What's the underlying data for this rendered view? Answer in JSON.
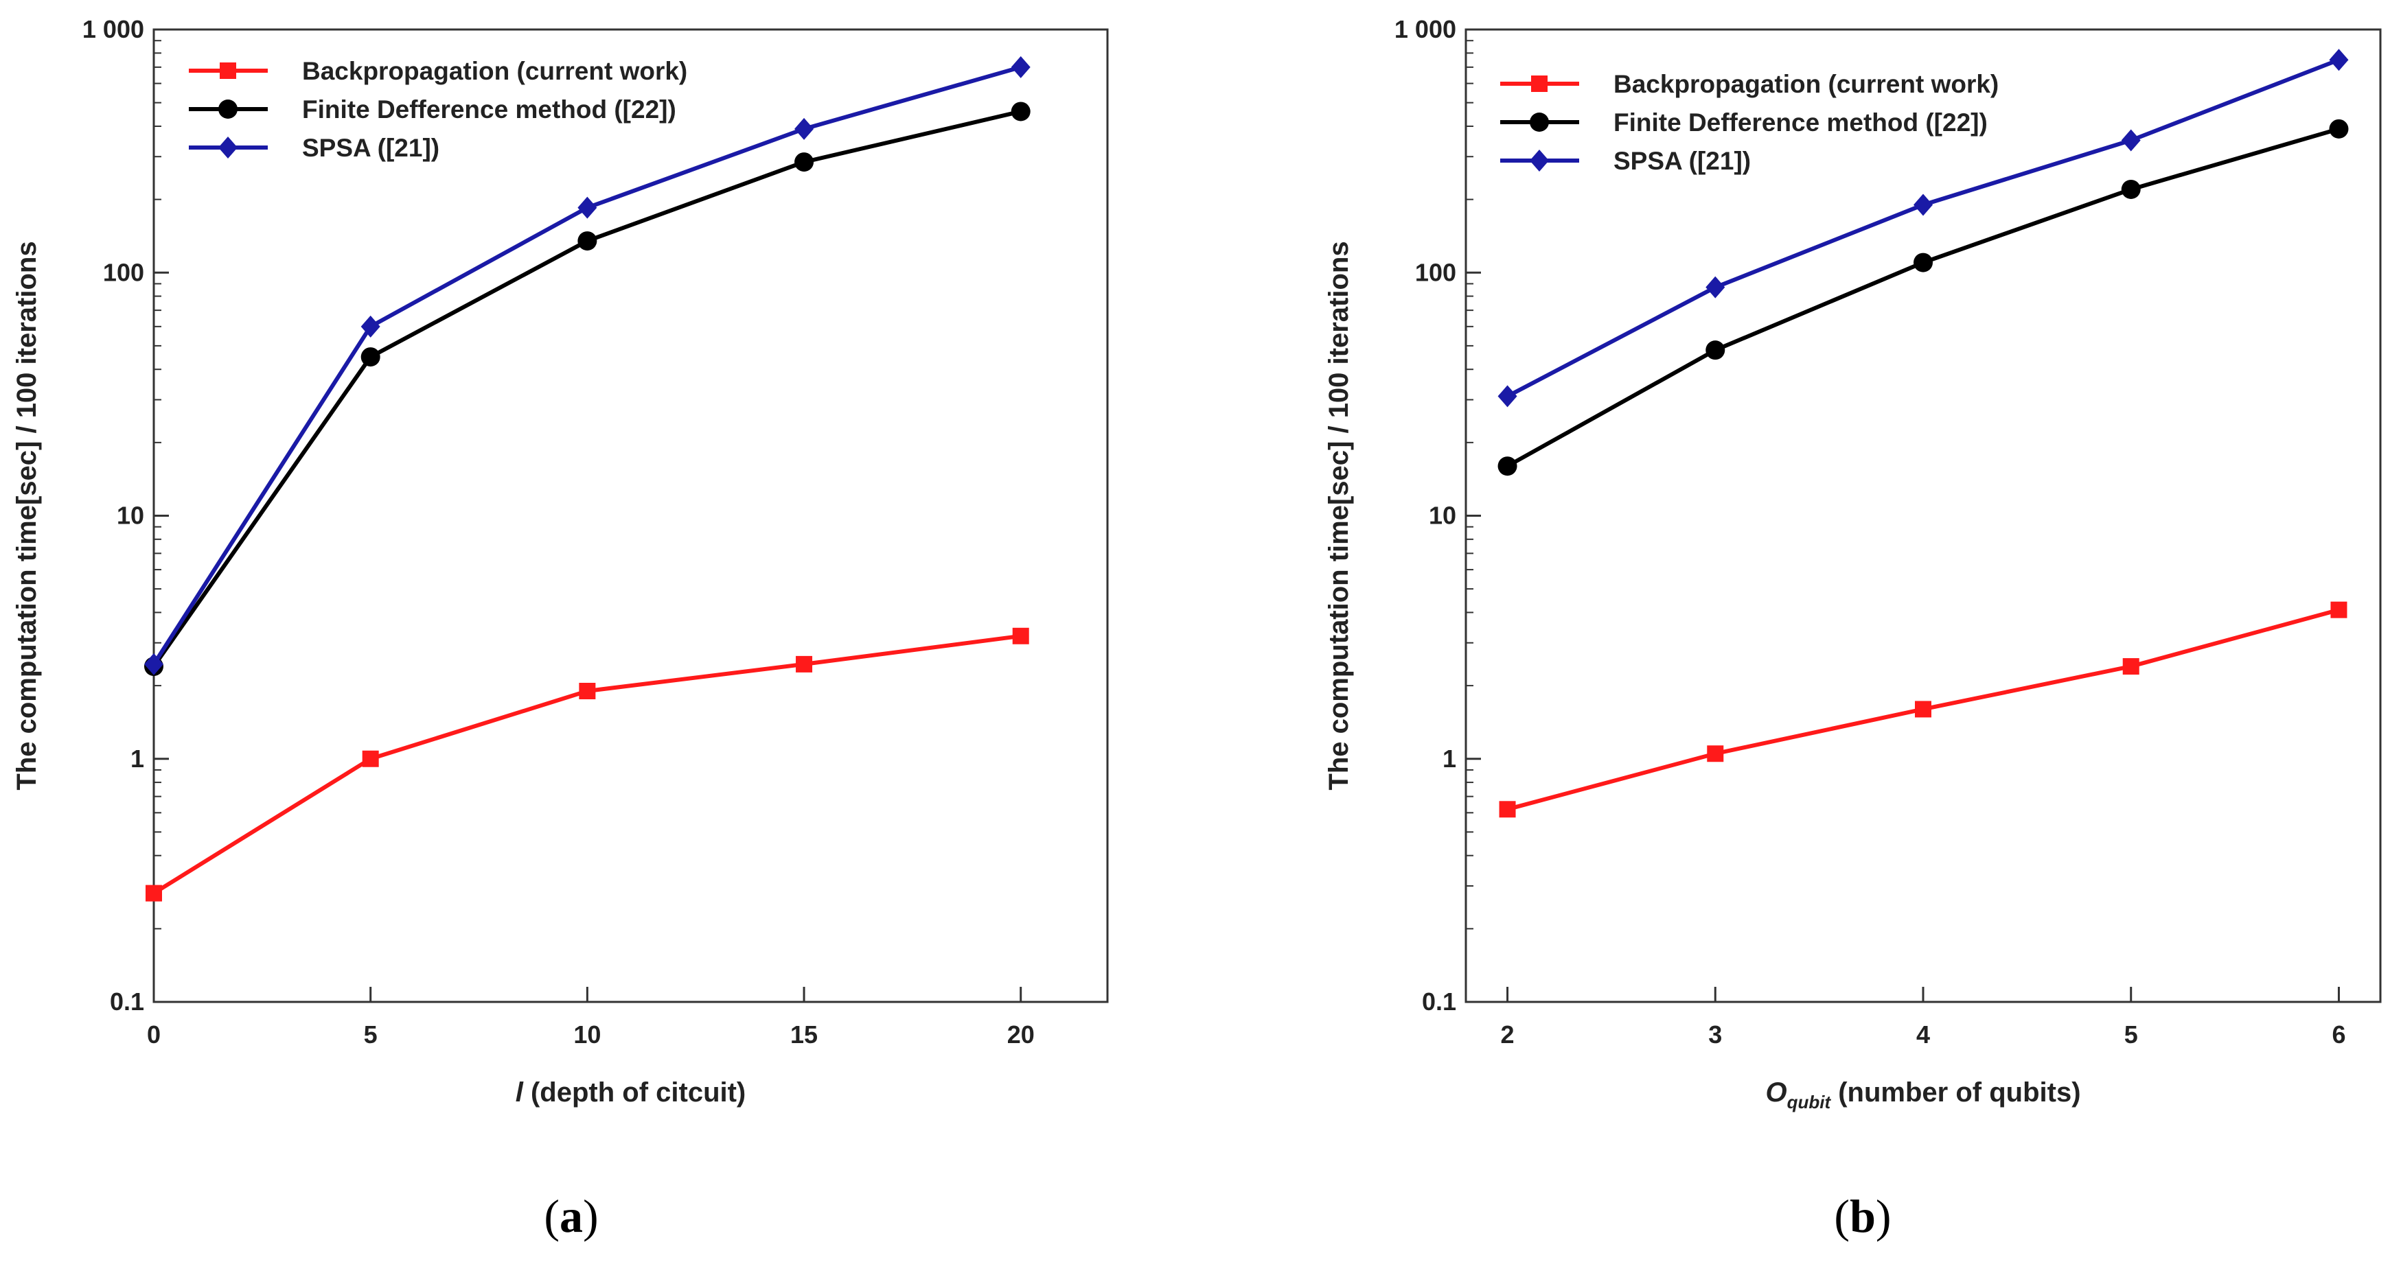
{
  "chart_data": [
    {
      "type": "line",
      "panel_label": "(a)",
      "scale_y": "log",
      "x": [
        0,
        5,
        10,
        15,
        20
      ],
      "xlim": [
        0,
        22
      ],
      "ylim": [
        0.1,
        1000
      ],
      "x_ticks": [
        "0",
        "5",
        "10",
        "15",
        "20"
      ],
      "y_ticks": [
        "0.1",
        "1",
        "10",
        "100",
        "1 000"
      ],
      "xlabel_symbol": "l",
      "xlabel": " (depth of citcuit)",
      "ylabel": "The computation time[sec] / 100 iterations",
      "legend_position": "top-left",
      "series": [
        {
          "name": "Backpropagation (current work)",
          "color": "#ff1a1a",
          "marker": "square",
          "values": [
            0.28,
            1.0,
            1.9,
            2.45,
            3.2
          ]
        },
        {
          "name": "Finite Defference method ([22])",
          "color": "#000000",
          "marker": "circle",
          "values": [
            2.4,
            45,
            135,
            285,
            460
          ]
        },
        {
          "name": "SPSA ([21])",
          "color": "#1a1aa6",
          "marker": "diamond",
          "values": [
            2.45,
            60,
            185,
            390,
            700
          ]
        }
      ]
    },
    {
      "type": "line",
      "panel_label": "(b)",
      "scale_y": "log",
      "x": [
        2,
        3,
        4,
        5,
        6
      ],
      "xlim": [
        1.8,
        6.2
      ],
      "ylim": [
        0.1,
        1000
      ],
      "x_ticks": [
        "2",
        "3",
        "4",
        "5",
        "6"
      ],
      "y_ticks": [
        "0.1",
        "1",
        "10",
        "100",
        "1 000"
      ],
      "xlabel_symbol": "O",
      "xlabel_sub": "qubit",
      "xlabel": " (number of qubits)",
      "ylabel": "The computation time[sec] / 100 iterations",
      "legend_position": "top-left",
      "series": [
        {
          "name": "Backpropagation (current work)",
          "color": "#ff1a1a",
          "marker": "square",
          "values": [
            0.62,
            1.05,
            1.6,
            2.4,
            4.1
          ]
        },
        {
          "name": "Finite Defference method ([22])",
          "color": "#000000",
          "marker": "circle",
          "values": [
            16,
            48,
            110,
            220,
            390
          ]
        },
        {
          "name": "SPSA ([21])",
          "color": "#1a1aa6",
          "marker": "diamond",
          "values": [
            31,
            87,
            190,
            350,
            750
          ]
        }
      ]
    }
  ]
}
